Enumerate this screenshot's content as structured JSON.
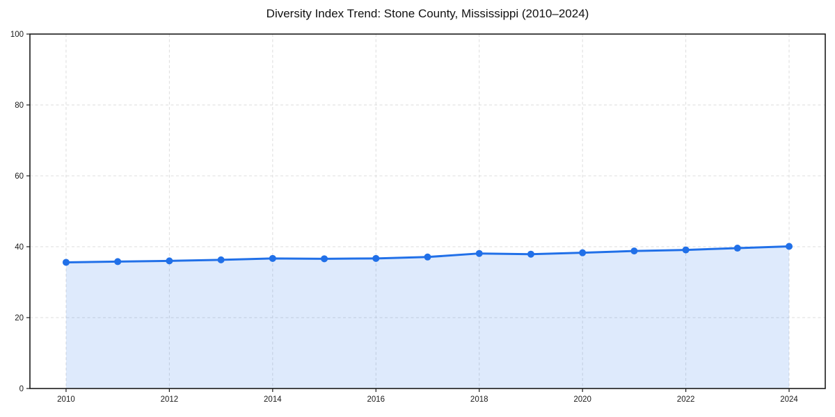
{
  "chart_data": {
    "type": "area",
    "title": "Diversity Index Trend: Stone County, Mississippi (2010–2024)",
    "x": [
      2010,
      2011,
      2012,
      2013,
      2014,
      2015,
      2016,
      2017,
      2018,
      2019,
      2020,
      2021,
      2022,
      2023,
      2024
    ],
    "series": [
      {
        "name": "Diversity Index",
        "values": [
          35.6,
          35.8,
          36.0,
          36.3,
          36.7,
          36.6,
          36.7,
          37.1,
          38.1,
          37.9,
          38.3,
          38.8,
          39.1,
          39.6,
          40.1
        ]
      }
    ],
    "xlabel": "",
    "ylabel": "",
    "xlim": [
      2009.3,
      2024.7
    ],
    "ylim": [
      0,
      100
    ],
    "xticks": [
      2010,
      2012,
      2014,
      2016,
      2018,
      2020,
      2022,
      2024
    ],
    "yticks": [
      0,
      20,
      40,
      60,
      80,
      100
    ],
    "grid": true,
    "grid_style": "dashed",
    "legend_position": "none",
    "line_color": "#2170e8",
    "marker_color": "#2170e8",
    "marker": "circle",
    "fill_color": "#2170e8",
    "fill_opacity": 0.15,
    "grid_color": "#dcdcdc",
    "spine_color": "#1a1a1a",
    "tick_label_color": "#1a1a1a",
    "title_color": "#111111"
  }
}
